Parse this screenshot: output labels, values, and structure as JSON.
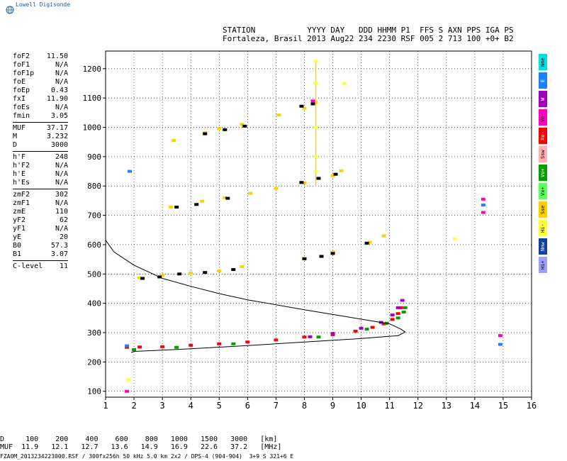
{
  "logo": {
    "text": "Lowell Digisonde",
    "icon": "globe-icon"
  },
  "header": {
    "row1": "STATION           YYYY DAY   DDD HHMM P1  FFS S AXN PPS IGA PS",
    "row2": "Fortaleza, Brasil 2013 Aug22 234 2230 RSF 005 2 713 100 +0+ B2"
  },
  "params": {
    "g1": [
      [
        "foF2",
        "11.50"
      ],
      [
        "foF1",
        "N/A"
      ],
      [
        "foF1p",
        "N/A"
      ],
      [
        "foE",
        "N/A"
      ],
      [
        "foEp",
        "0.43"
      ],
      [
        "fxI",
        "11.90"
      ],
      [
        "foEs",
        "N/A"
      ],
      [
        "fmin",
        "3.05"
      ]
    ],
    "g2": [
      [
        "MUF",
        "37.17"
      ],
      [
        "M",
        "3.232"
      ],
      [
        "D",
        "3000"
      ]
    ],
    "g3": [
      [
        "h'F",
        "248"
      ],
      [
        "h'F2",
        "N/A"
      ],
      [
        "h'E",
        "N/A"
      ],
      [
        "h'Es",
        "N/A"
      ]
    ],
    "g4": [
      [
        "zmF2",
        "302"
      ],
      [
        "zmF1",
        "N/A"
      ],
      [
        "zmE",
        "110"
      ],
      [
        "yF2",
        "62"
      ],
      [
        "yF1",
        "N/A"
      ],
      [
        "yE",
        "20"
      ],
      [
        "B0",
        "57.3"
      ],
      [
        "B1",
        "3.07"
      ]
    ],
    "g5": [
      [
        "C-level",
        "11"
      ]
    ]
  },
  "legend": [
    {
      "label": "Nne",
      "color": "#00e0e0"
    },
    {
      "label": "E",
      "color": "#1e7fff"
    },
    {
      "label": "W",
      "color": "#a000c0"
    },
    {
      "label": "Vo-",
      "color": "#ff00c0"
    },
    {
      "label": "Xo-",
      "color": "#ff0000"
    },
    {
      "label": "Ssw",
      "color": "#ffb0b0"
    },
    {
      "label": "Vo+",
      "color": "#00a000"
    },
    {
      "label": "Vx+",
      "color": "#60ff60"
    },
    {
      "label": "Sse",
      "color": "#ffd000"
    },
    {
      "label": "Hi-",
      "color": "#ffff40"
    },
    {
      "label": "Nnw",
      "color": "#1040a0"
    },
    {
      "label": "Hi+",
      "color": "#a0a0ff"
    }
  ],
  "footer": {
    "d_row": "D     100    200    400    600    800   1000   1500   3000   [km]",
    "muf_row": "MUF  11.9   12.1   12.7   13.6   14.9   16.9   22.6   37.2   [MHz]",
    "filename": "FZA0M_2013234223000.RSF / 300fx256h 50 kHz 5.0 km 2x2 / DPS-4 (904-904)  3+9 S 321+6 E"
  },
  "chart_data": {
    "type": "scatter",
    "xlabel": "",
    "ylabel": "",
    "xlim": [
      1,
      16
    ],
    "ylim": [
      80,
      1260
    ],
    "xticks": [
      1,
      2,
      3,
      4,
      5,
      6,
      7,
      8,
      9,
      10,
      11,
      12,
      13,
      14,
      15,
      16
    ],
    "yticks": [
      100,
      200,
      300,
      400,
      500,
      600,
      700,
      800,
      900,
      1000,
      1100,
      1200
    ],
    "grid": true,
    "series": [
      {
        "color": "#ff0000",
        "points": [
          [
            1.75,
            250
          ],
          [
            2.2,
            251
          ],
          [
            3.0,
            252
          ],
          [
            4.0,
            257
          ],
          [
            5.0,
            262
          ],
          [
            6.0,
            268
          ],
          [
            7.0,
            275
          ],
          [
            8.0,
            285
          ],
          [
            9.0,
            293
          ],
          [
            9.8,
            305
          ],
          [
            10.4,
            318
          ],
          [
            10.8,
            330
          ],
          [
            11.1,
            345
          ],
          [
            11.3,
            365
          ],
          [
            11.4,
            385
          ]
        ]
      },
      {
        "color": "#00a000",
        "points": [
          [
            2.0,
            242
          ],
          [
            3.5,
            250
          ],
          [
            5.5,
            262
          ],
          [
            8.5,
            285
          ],
          [
            10.2,
            312
          ],
          [
            10.9,
            332
          ],
          [
            11.3,
            350
          ],
          [
            11.5,
            370
          ],
          [
            11.55,
            385
          ]
        ]
      },
      {
        "color": "#a000c0",
        "points": [
          [
            8.2,
            286
          ],
          [
            9.0,
            297
          ],
          [
            10.0,
            315
          ],
          [
            10.7,
            335
          ],
          [
            11.1,
            360
          ],
          [
            11.3,
            385
          ],
          [
            11.45,
            410
          ]
        ]
      },
      {
        "color": "#ffd000",
        "points": [
          [
            2.2,
            487
          ],
          [
            3.0,
            495
          ],
          [
            4.0,
            503
          ],
          [
            5.0,
            510
          ],
          [
            5.8,
            525
          ],
          [
            8.0,
            552
          ],
          [
            9.0,
            575
          ],
          [
            10.3,
            608
          ],
          [
            10.8,
            630
          ],
          [
            3.3,
            728
          ],
          [
            4.4,
            748
          ],
          [
            5.2,
            760
          ],
          [
            6.1,
            775
          ],
          [
            7.0,
            792
          ],
          [
            8.0,
            810
          ],
          [
            9.0,
            835
          ],
          [
            9.3,
            852
          ],
          [
            3.4,
            955
          ],
          [
            4.5,
            982
          ],
          [
            5.0,
            996
          ],
          [
            5.8,
            1010
          ],
          [
            7.1,
            1042
          ],
          [
            8.0,
            1065
          ],
          [
            8.4,
            1085
          ]
        ]
      },
      {
        "color": "#000000",
        "points": [
          [
            2.3,
            485
          ],
          [
            2.9,
            490
          ],
          [
            3.6,
            500
          ],
          [
            4.5,
            505
          ],
          [
            5.5,
            515
          ],
          [
            8.0,
            552
          ],
          [
            8.6,
            560
          ],
          [
            9.0,
            570
          ],
          [
            10.2,
            605
          ],
          [
            3.5,
            728
          ],
          [
            4.2,
            737
          ],
          [
            5.3,
            758
          ],
          [
            7.9,
            812
          ],
          [
            8.5,
            826
          ],
          [
            9.1,
            840
          ],
          [
            4.5,
            978
          ],
          [
            5.2,
            992
          ],
          [
            5.9,
            1004
          ],
          [
            7.9,
            1072
          ],
          [
            8.3,
            1080
          ]
        ]
      },
      {
        "color": "#ff00c0",
        "points": [
          [
            8.3,
            1090
          ],
          [
            14.3,
            755
          ],
          [
            14.3,
            710
          ],
          [
            1.75,
            100
          ],
          [
            14.9,
            290
          ]
        ]
      },
      {
        "color": "#1e7fff",
        "points": [
          [
            1.85,
            850
          ],
          [
            14.3,
            735
          ],
          [
            14.9,
            260
          ],
          [
            1.75,
            255
          ]
        ]
      },
      {
        "color": "#ffff40",
        "points": [
          [
            8.4,
            1225
          ],
          [
            8.4,
            1150
          ],
          [
            8.4,
            1000
          ],
          [
            8.4,
            900
          ],
          [
            8.4,
            850
          ],
          [
            1.8,
            140
          ],
          [
            9.4,
            1150
          ],
          [
            13.3,
            620
          ]
        ]
      }
    ],
    "vertical_streak": {
      "x": 8.4,
      "y_from": 800,
      "y_to": 1230,
      "color": "#ffd000"
    },
    "profile_curve": [
      [
        1.0,
        615
      ],
      [
        1.3,
        575
      ],
      [
        2.0,
        530
      ],
      [
        3.0,
        485
      ],
      [
        4.0,
        458
      ],
      [
        5.0,
        433
      ],
      [
        6.0,
        412
      ],
      [
        7.0,
        395
      ],
      [
        8.0,
        378
      ],
      [
        9.0,
        362
      ],
      [
        10.0,
        346
      ],
      [
        11.0,
        330
      ],
      [
        11.4,
        312
      ],
      [
        11.55,
        302
      ],
      [
        11.3,
        290
      ],
      [
        10.0,
        280
      ],
      [
        8.0,
        268
      ],
      [
        6.0,
        256
      ],
      [
        4.0,
        245
      ],
      [
        2.0,
        236
      ],
      [
        1.9,
        232
      ]
    ]
  }
}
